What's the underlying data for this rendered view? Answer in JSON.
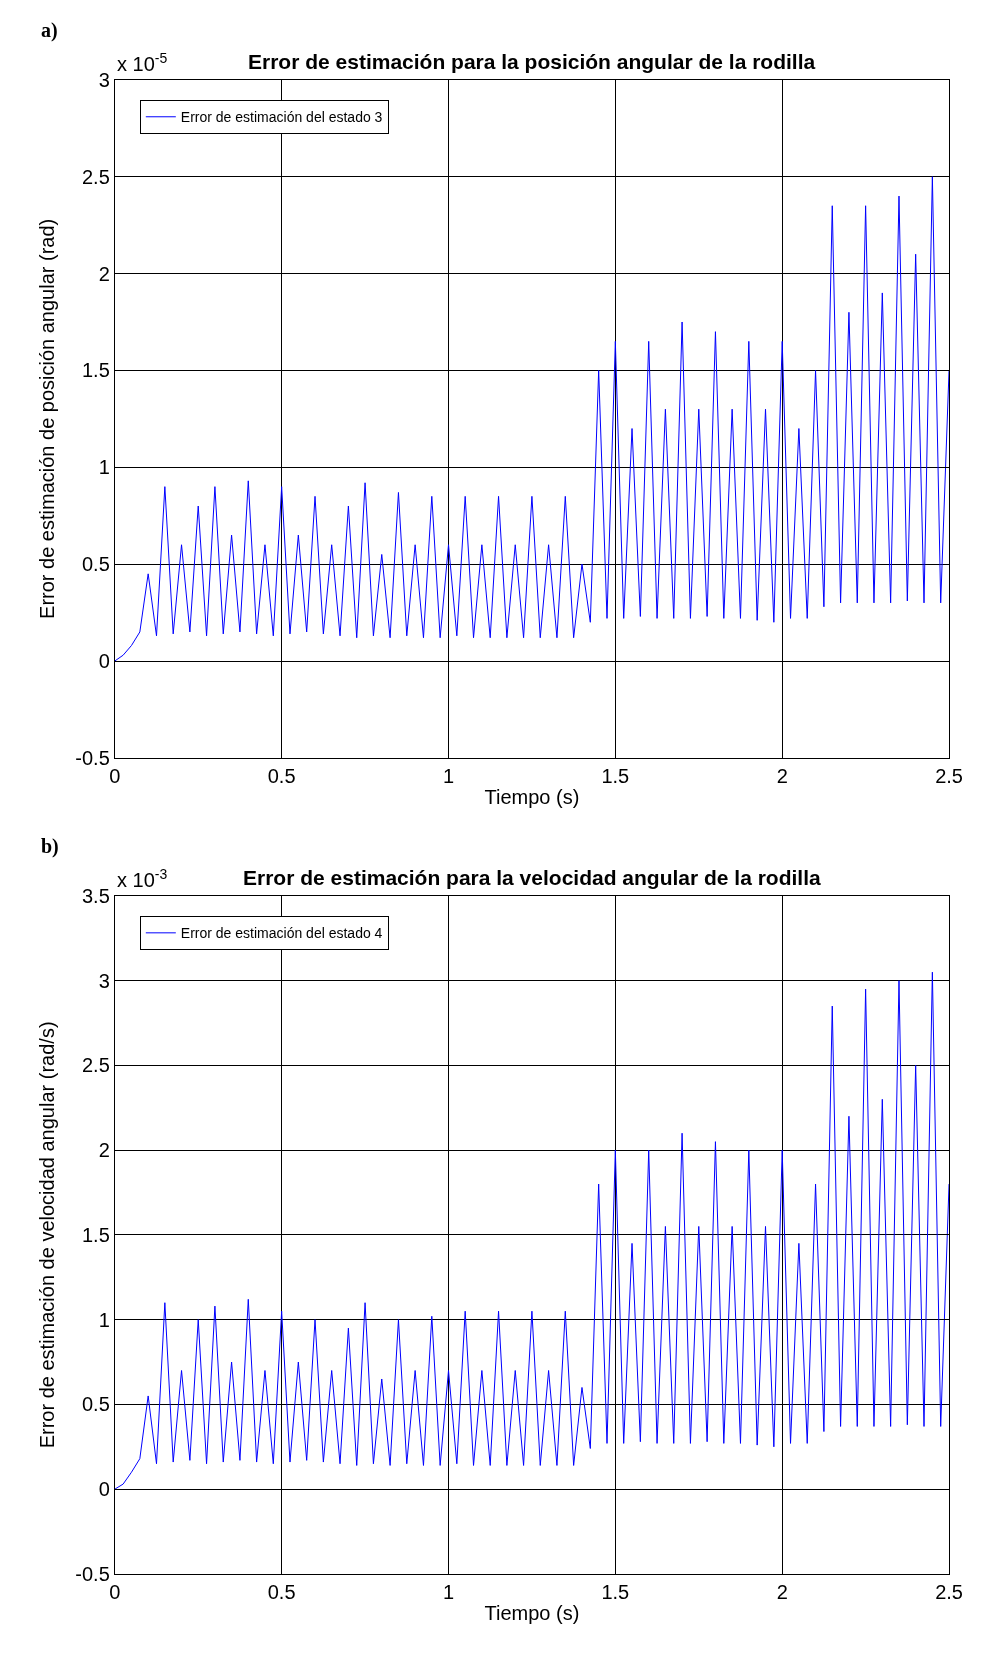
{
  "chart_data": [
    {
      "type": "line",
      "title": "Error de estimación para la posición angular de la rodilla",
      "xlabel": "Tiempo (s)",
      "ylabel": "Error de estimación de posición angular (rad)",
      "annotations": [
        "a)",
        "x 10$^{-5}$"
      ],
      "x": [
        0,
        0.025,
        0.05,
        0.075,
        0.1,
        0.125,
        0.15,
        0.175,
        0.2,
        0.225,
        0.25,
        0.275,
        0.3,
        0.325,
        0.35,
        0.375,
        0.4,
        0.425,
        0.45,
        0.475,
        0.5,
        0.525,
        0.55,
        0.575,
        0.6,
        0.625,
        0.65,
        0.675,
        0.7,
        0.725,
        0.75,
        0.775,
        0.8,
        0.825,
        0.85,
        0.875,
        0.9,
        0.925,
        0.95,
        0.975,
        1.0,
        1.025,
        1.05,
        1.075,
        1.1,
        1.125,
        1.15,
        1.175,
        1.2,
        1.225,
        1.25,
        1.275,
        1.3,
        1.325,
        1.35,
        1.375,
        1.4,
        1.425,
        1.45,
        1.475,
        1.5,
        1.525,
        1.55,
        1.575,
        1.6,
        1.625,
        1.65,
        1.675,
        1.7,
        1.725,
        1.75,
        1.775,
        1.8,
        1.825,
        1.85,
        1.875,
        1.9,
        1.925,
        1.95,
        1.975,
        2.0,
        2.025,
        2.05,
        2.075,
        2.1,
        2.125,
        2.15,
        2.175,
        2.2,
        2.225,
        2.25,
        2.275,
        2.3,
        2.325,
        2.35,
        2.375,
        2.4,
        2.425,
        2.45,
        2.475,
        2.5
      ],
      "series": [
        {
          "name": "Error de estimación del estado 3",
          "color": "#0000ff",
          "values": [
            0,
            0.03,
            0.08,
            0.15,
            0.45,
            0.13,
            0.9,
            0.14,
            0.6,
            0.15,
            0.8,
            0.13,
            0.9,
            0.14,
            0.65,
            0.15,
            0.93,
            0.14,
            0.6,
            0.13,
            0.9,
            0.14,
            0.65,
            0.15,
            0.85,
            0.14,
            0.6,
            0.13,
            0.8,
            0.12,
            0.92,
            0.13,
            0.55,
            0.12,
            0.87,
            0.13,
            0.6,
            0.12,
            0.85,
            0.12,
            0.6,
            0.13,
            0.85,
            0.12,
            0.6,
            0.12,
            0.85,
            0.12,
            0.6,
            0.12,
            0.85,
            0.12,
            0.6,
            0.12,
            0.85,
            0.12,
            0.5,
            0.2,
            1.5,
            0.22,
            1.65,
            0.22,
            1.2,
            0.23,
            1.65,
            0.22,
            1.3,
            0.22,
            1.75,
            0.22,
            1.3,
            0.23,
            1.7,
            0.22,
            1.3,
            0.22,
            1.65,
            0.21,
            1.3,
            0.2,
            1.65,
            0.22,
            1.2,
            0.22,
            1.5,
            0.28,
            2.35,
            0.3,
            1.8,
            0.3,
            2.35,
            0.3,
            1.9,
            0.3,
            2.4,
            0.31,
            2.1,
            0.3,
            2.5,
            0.3,
            1.5
          ]
        }
      ],
      "xlim": [
        0,
        2.5
      ],
      "xticks": [
        0,
        0.5,
        1,
        1.5,
        2,
        2.5
      ],
      "ylim": [
        -0.5,
        3
      ],
      "yticks": [
        -0.5,
        0,
        0.5,
        1,
        1.5,
        2,
        2.5,
        3
      ],
      "grid": true,
      "legend": "top left",
      "line_style": "solid"
    },
    {
      "type": "line",
      "title": "Error de estimación para la velocidad angular de la rodilla",
      "xlabel": "Tiempo (s)",
      "ylabel": "Error de estimación de velocidad angular (rad/s)",
      "annotations": [
        "b)",
        "x 10$^{-3}$"
      ],
      "x": [
        0,
        0.025,
        0.05,
        0.075,
        0.1,
        0.125,
        0.15,
        0.175,
        0.2,
        0.225,
        0.25,
        0.275,
        0.3,
        0.325,
        0.35,
        0.375,
        0.4,
        0.425,
        0.45,
        0.475,
        0.5,
        0.525,
        0.55,
        0.575,
        0.6,
        0.625,
        0.65,
        0.675,
        0.7,
        0.725,
        0.75,
        0.775,
        0.8,
        0.825,
        0.85,
        0.875,
        0.9,
        0.925,
        0.95,
        0.975,
        1.0,
        1.025,
        1.05,
        1.075,
        1.1,
        1.125,
        1.15,
        1.175,
        1.2,
        1.225,
        1.25,
        1.275,
        1.3,
        1.325,
        1.35,
        1.375,
        1.4,
        1.425,
        1.45,
        1.475,
        1.5,
        1.525,
        1.55,
        1.575,
        1.6,
        1.625,
        1.65,
        1.675,
        1.7,
        1.725,
        1.75,
        1.775,
        1.8,
        1.825,
        1.85,
        1.875,
        1.9,
        1.925,
        1.95,
        1.975,
        2.0,
        2.025,
        2.05,
        2.075,
        2.1,
        2.125,
        2.15,
        2.175,
        2.2,
        2.225,
        2.25,
        2.275,
        2.3,
        2.325,
        2.35,
        2.375,
        2.4,
        2.425,
        2.45,
        2.475,
        2.5
      ],
      "series": [
        {
          "name": "Error de estimación del estado 4",
          "color": "#0000ff",
          "values": [
            0,
            0.03,
            0.1,
            0.18,
            0.55,
            0.15,
            1.1,
            0.16,
            0.7,
            0.17,
            1.0,
            0.15,
            1.08,
            0.16,
            0.75,
            0.17,
            1.12,
            0.16,
            0.7,
            0.15,
            1.05,
            0.16,
            0.75,
            0.17,
            1.0,
            0.16,
            0.7,
            0.15,
            0.95,
            0.14,
            1.1,
            0.15,
            0.65,
            0.14,
            1.0,
            0.15,
            0.7,
            0.14,
            1.02,
            0.14,
            0.7,
            0.15,
            1.05,
            0.14,
            0.7,
            0.14,
            1.05,
            0.14,
            0.7,
            0.14,
            1.05,
            0.14,
            0.7,
            0.14,
            1.05,
            0.14,
            0.6,
            0.24,
            1.8,
            0.27,
            2.0,
            0.27,
            1.45,
            0.28,
            2.0,
            0.27,
            1.55,
            0.27,
            2.1,
            0.27,
            1.55,
            0.28,
            2.05,
            0.27,
            1.55,
            0.27,
            2.0,
            0.26,
            1.55,
            0.25,
            2.0,
            0.27,
            1.45,
            0.27,
            1.8,
            0.34,
            2.85,
            0.37,
            2.2,
            0.37,
            2.95,
            0.37,
            2.3,
            0.37,
            3.0,
            0.38,
            2.5,
            0.37,
            3.05,
            0.37,
            1.8
          ]
        }
      ],
      "xlim": [
        0,
        2.5
      ],
      "xticks": [
        0,
        0.5,
        1,
        1.5,
        2,
        2.5
      ],
      "ylim": [
        -0.5,
        3.5
      ],
      "yticks": [
        -0.5,
        0,
        0.5,
        1,
        1.5,
        2,
        2.5,
        3,
        3.5
      ],
      "grid": true,
      "legend": "top left",
      "line_style": "solid"
    }
  ]
}
